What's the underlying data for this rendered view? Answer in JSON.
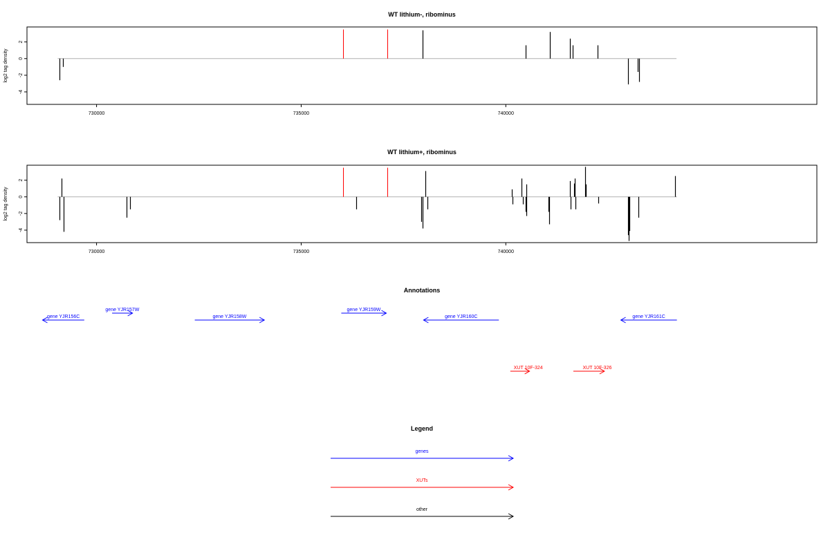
{
  "colors": {
    "gene": "#0000ff",
    "xut": "#ff0000",
    "other": "#000000",
    "signal": "#000000",
    "highlight": "#ff0000",
    "baseline": "#b0b0b0"
  },
  "chart_data": [
    {
      "type": "bar",
      "title": "WT lithium-, ribominus",
      "ylabel": "log2 tag density",
      "xlim": [
        728300,
        747600
      ],
      "ylim": [
        -5.5,
        3.8
      ],
      "xticks": [
        730000,
        735000,
        740000
      ],
      "xtick_labels": [
        "730000",
        "735000",
        "740000"
      ],
      "yticks": [
        2,
        0,
        -2,
        -4
      ],
      "ytick_labels": [
        "2",
        "0",
        "-2",
        "-4"
      ],
      "bars": [
        {
          "x": 729100,
          "y": -2.6
        },
        {
          "x": 729180,
          "y": -1.0
        },
        {
          "x": 736020,
          "y": 3.5,
          "highlight": true
        },
        {
          "x": 737100,
          "y": 3.5,
          "highlight": true
        },
        {
          "x": 737970,
          "y": 3.4
        },
        {
          "x": 740480,
          "y": 1.6
        },
        {
          "x": 741070,
          "y": 3.2
        },
        {
          "x": 741560,
          "y": 2.4
        },
        {
          "x": 741640,
          "y": 1.6
        },
        {
          "x": 742240,
          "y": 1.6
        },
        {
          "x": 742990,
          "y": -3.1
        },
        {
          "x": 743220,
          "y": -1.6
        },
        {
          "x": 743250,
          "y": -2.8
        }
      ]
    },
    {
      "type": "bar",
      "title": "WT lithium+, ribominus",
      "ylabel": "log2 tag density",
      "xlim": [
        728300,
        747600
      ],
      "ylim": [
        -5.5,
        3.8
      ],
      "xticks": [
        730000,
        735000,
        740000
      ],
      "xtick_labels": [
        "730000",
        "735000",
        "740000"
      ],
      "yticks": [
        2,
        0,
        -2,
        -4
      ],
      "ytick_labels": [
        "2",
        "0",
        "-2",
        "-4"
      ],
      "bars": [
        {
          "x": 729100,
          "y": -2.8
        },
        {
          "x": 729150,
          "y": 2.2
        },
        {
          "x": 729200,
          "y": -4.2
        },
        {
          "x": 730740,
          "y": -2.5
        },
        {
          "x": 730820,
          "y": -1.5
        },
        {
          "x": 736020,
          "y": 3.5,
          "highlight": true
        },
        {
          "x": 736340,
          "y": -1.5
        },
        {
          "x": 737100,
          "y": 3.5,
          "highlight": true
        },
        {
          "x": 737930,
          "y": -3.0
        },
        {
          "x": 737960,
          "y": -3.8
        },
        {
          "x": 738040,
          "y": 3.1
        },
        {
          "x": 738080,
          "y": -1.5
        },
        {
          "x": 740140,
          "y": 0.9
        },
        {
          "x": 740170,
          "y": -0.9
        },
        {
          "x": 740380,
          "y": 2.2
        },
        {
          "x": 740420,
          "y": -0.9
        },
        {
          "x": 740480,
          "y": -1.8
        },
        {
          "x": 740500,
          "y": 1.5
        },
        {
          "x": 740510,
          "y": -2.3
        },
        {
          "x": 741050,
          "y": -1.8
        },
        {
          "x": 741060,
          "y": -3.3
        },
        {
          "x": 741560,
          "y": 1.9
        },
        {
          "x": 741580,
          "y": -1.5
        },
        {
          "x": 741660,
          "y": 1.6
        },
        {
          "x": 741680,
          "y": 2.2
        },
        {
          "x": 741700,
          "y": -1.5
        },
        {
          "x": 741940,
          "y": 3.6
        },
        {
          "x": 741960,
          "y": 1.5
        },
        {
          "x": 742260,
          "y": -0.8
        },
        {
          "x": 742980,
          "y": -4.6
        },
        {
          "x": 743000,
          "y": -5.3
        },
        {
          "x": 743020,
          "y": -4.1
        },
        {
          "x": 743240,
          "y": -2.5
        },
        {
          "x": 744140,
          "y": 2.5
        }
      ]
    }
  ],
  "annotations": {
    "title": "Annotations",
    "genes": [
      {
        "label": "gene YJR156C",
        "start": 728680,
        "end": 729700,
        "direction": "left",
        "row": 1
      },
      {
        "label": "gene YJR157W",
        "start": 730380,
        "end": 730880,
        "direction": "right",
        "row": 0
      },
      {
        "label": "gene YJR158W",
        "start": 732400,
        "end": 734100,
        "direction": "right",
        "row": 1
      },
      {
        "label": "gene YJR159W",
        "start": 735980,
        "end": 737080,
        "direction": "right",
        "row": 0
      },
      {
        "label": "gene YJR160C",
        "start": 737990,
        "end": 739830,
        "direction": "left",
        "row": 1
      },
      {
        "label": "gene YJR161C",
        "start": 742810,
        "end": 744180,
        "direction": "left",
        "row": 1
      }
    ],
    "xuts": [
      {
        "label": "XUT 10F-324",
        "start": 740110,
        "end": 740580,
        "direction": "right"
      },
      {
        "label": "XUT 10F-326",
        "start": 741650,
        "end": 742410,
        "direction": "right"
      }
    ]
  },
  "legend": {
    "title": "Legend",
    "items": [
      {
        "label": "genes",
        "color": "#0000ff"
      },
      {
        "label": "XUTs",
        "color": "#ff0000"
      },
      {
        "label": "other",
        "color": "#000000"
      }
    ]
  }
}
